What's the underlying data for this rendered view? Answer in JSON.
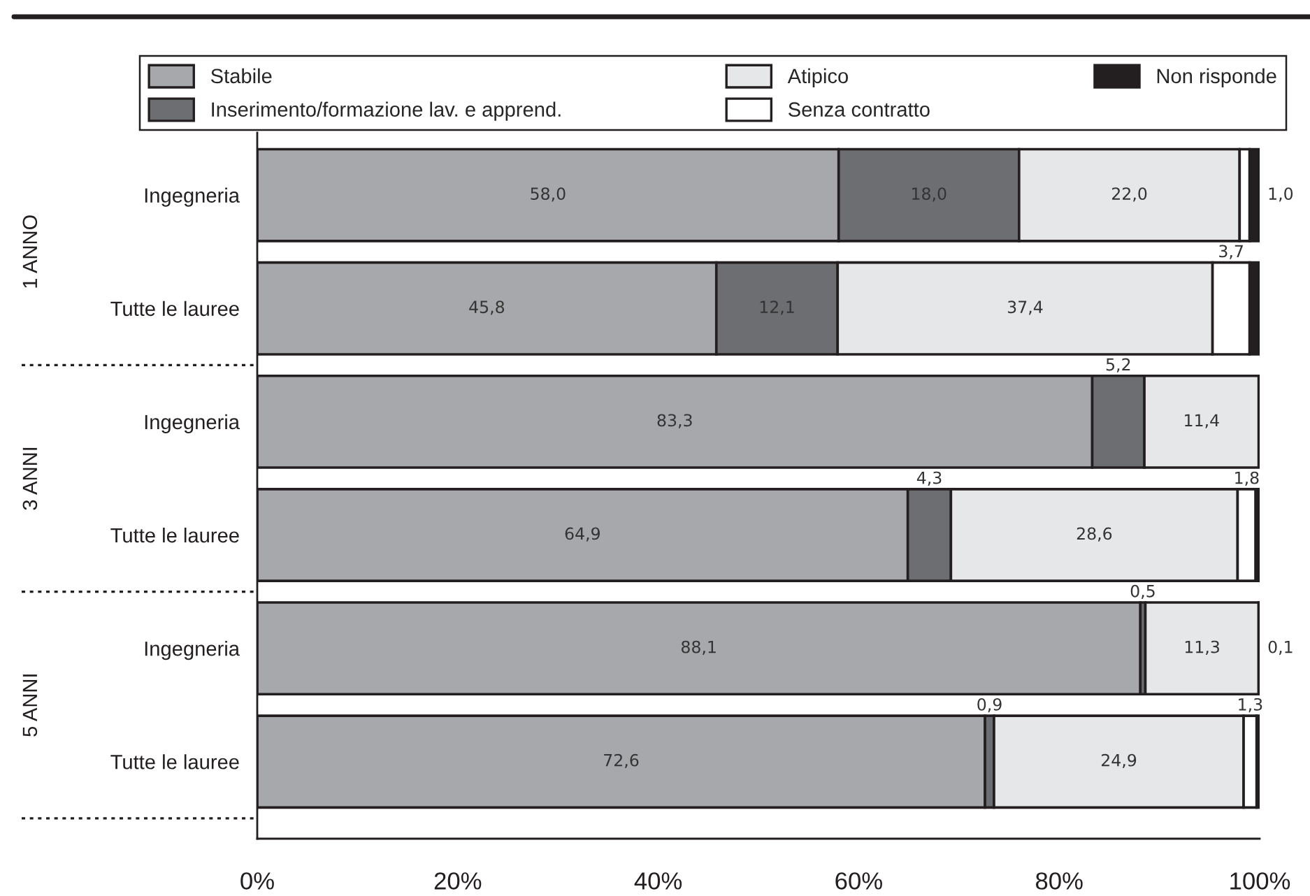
{
  "chart_data": {
    "type": "bar",
    "orientation": "horizontal",
    "stacked": true,
    "categories": [
      "Ingegneria",
      "Tutte le lauree",
      "Ingegneria",
      "Tutte le lauree",
      "Ingegneria",
      "Tutte le lauree"
    ],
    "series": [
      {
        "name": "Stabile",
        "color": "#a7a8ab",
        "values": [
          58.0,
          45.8,
          83.3,
          64.9,
          88.1,
          72.6
        ],
        "value_labels": [
          "58,0",
          "45,8",
          "83,3",
          "64,9",
          "88,1",
          "72,6"
        ]
      },
      {
        "name": "Inserimento/formazione lav. e apprend.",
        "color": "#6d6e71",
        "values": [
          18.0,
          12.1,
          5.2,
          4.3,
          0.5,
          0.9
        ],
        "value_labels": [
          "18,0",
          "12,1",
          "5,2",
          "4,3",
          "0,5",
          "0,9"
        ]
      },
      {
        "name": "Atipico",
        "color": "#e6e7e8",
        "values": [
          22.0,
          37.4,
          11.4,
          28.6,
          11.3,
          24.9
        ],
        "value_labels": [
          "22,0",
          "37,4",
          "11,4",
          "28,6",
          "11,3",
          "24,9"
        ]
      },
      {
        "name": "Senza contratto",
        "color": "#ffffff",
        "values": [
          1.0,
          3.7,
          null,
          1.8,
          null,
          1.3
        ],
        "value_labels": [
          null,
          "3,7",
          null,
          "1,8",
          null,
          "1,3"
        ]
      },
      {
        "name": "Non risponde",
        "color": "#231f20",
        "values": [
          1.0,
          1.0,
          null,
          0.4,
          0.1,
          0.3
        ],
        "value_labels": [
          "1,0",
          null,
          null,
          null,
          "0,1",
          null
        ]
      }
    ],
    "xlim": [
      0,
      100
    ],
    "xticks": [
      {
        "value": 0,
        "label": "0%"
      },
      {
        "value": 20,
        "label": "20%"
      },
      {
        "value": 40,
        "label": "40%"
      },
      {
        "value": 60,
        "label": "60%"
      },
      {
        "value": 80,
        "label": "80%"
      },
      {
        "value": 100,
        "label": "100%"
      }
    ],
    "legend": "top",
    "annotations": [
      "1 ANNO",
      "3 ANNI",
      "5 ANNI"
    ]
  }
}
